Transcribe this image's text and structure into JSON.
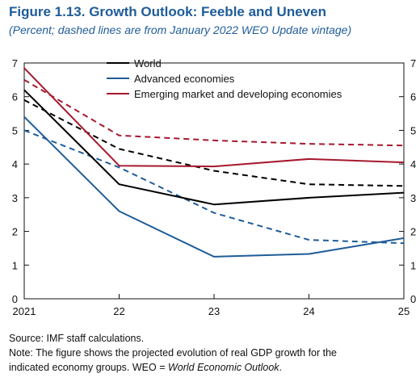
{
  "figure": {
    "title": "Figure 1.13.  Growth Outlook: Feeble and Uneven",
    "subtitle": "(Percent; dashed lines are from January 2022 WEO Update vintage)"
  },
  "chart_data": {
    "type": "line",
    "x": [
      "2021",
      "22",
      "23",
      "24",
      "25"
    ],
    "ylim": [
      0,
      7
    ],
    "yticks": [
      0,
      1,
      2,
      3,
      4,
      5,
      6,
      7
    ],
    "grid": false,
    "legend_placement": "top-center",
    "series": [
      {
        "name": "World",
        "color": "#000000",
        "dashed": false,
        "in_legend": true,
        "values": [
          6.2,
          3.4,
          2.8,
          3.0,
          3.15
        ]
      },
      {
        "name": "Advanced economies",
        "color": "#1f5c99",
        "dashed": false,
        "in_legend": true,
        "values": [
          5.4,
          2.6,
          1.25,
          1.33,
          1.8
        ]
      },
      {
        "name": "Emerging market and developing economies",
        "color": "#a6192e",
        "dashed": false,
        "in_legend": true,
        "values": [
          6.85,
          3.95,
          3.93,
          4.15,
          4.05
        ]
      },
      {
        "name": "",
        "color": "#000000",
        "dashed": true,
        "in_legend": false,
        "values": [
          5.9,
          4.45,
          3.8,
          3.4,
          3.35
        ]
      },
      {
        "name": "",
        "color": "#1f5c99",
        "dashed": true,
        "in_legend": false,
        "values": [
          5.0,
          3.9,
          2.55,
          1.75,
          1.65
        ]
      },
      {
        "name": "",
        "color": "#a6192e",
        "dashed": true,
        "in_legend": false,
        "values": [
          6.5,
          4.85,
          4.7,
          4.6,
          4.55
        ]
      }
    ]
  },
  "notes": {
    "source": "Source: IMF staff calculations.",
    "note_line1": "Note: The figure shows the projected evolution of real GDP growth for the",
    "note_line2_prefix": "indicated economy groups. WEO = ",
    "note_line2_italic": "World Economic Outlook",
    "note_line2_suffix": "."
  }
}
